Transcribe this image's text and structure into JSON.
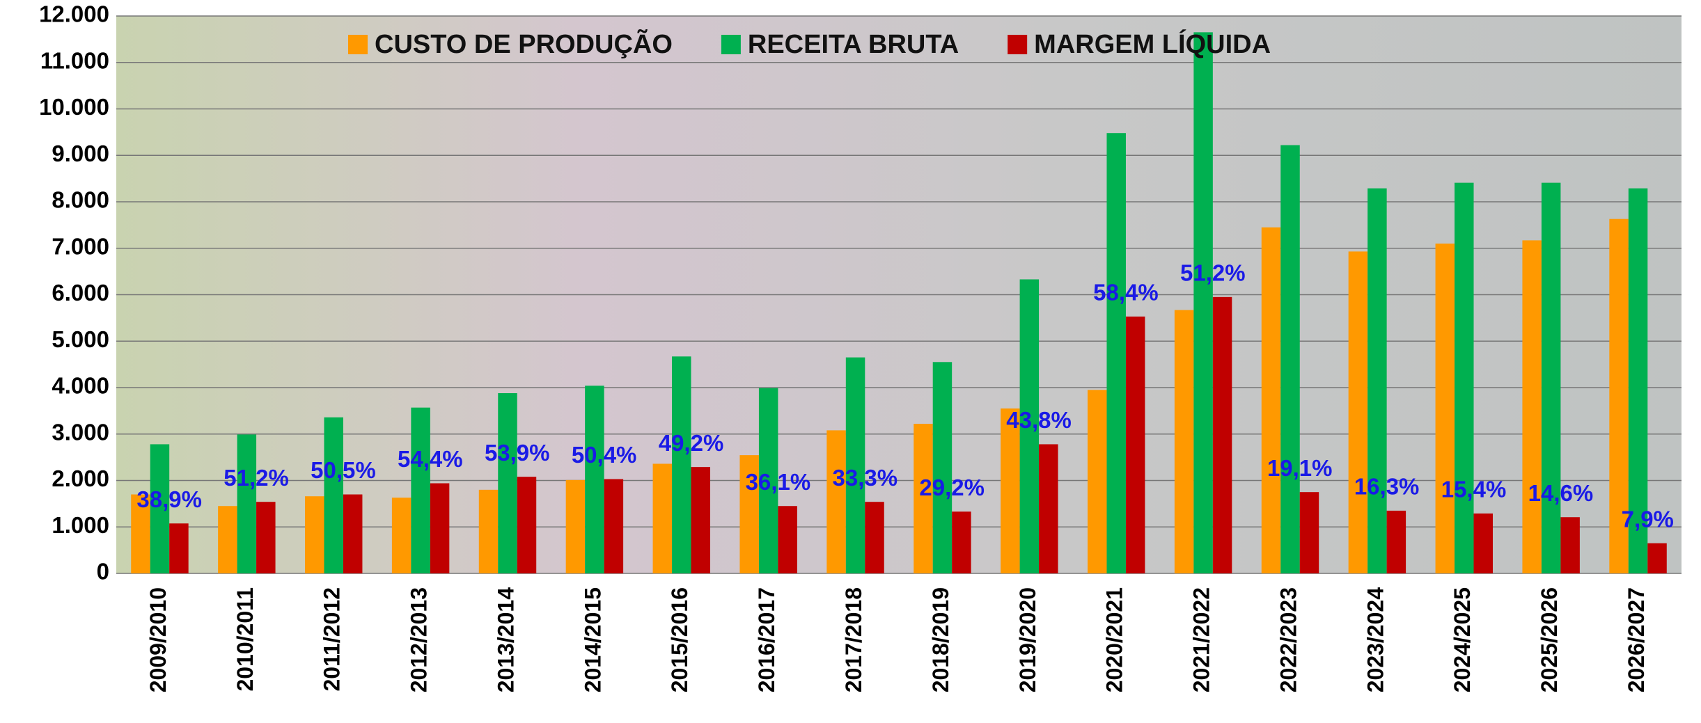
{
  "chart_data": {
    "type": "bar",
    "categories": [
      "2009/2010",
      "2010/2011",
      "2011/2012",
      "2012/2013",
      "2013/2014",
      "2014/2015",
      "2015/2016",
      "2016/2017",
      "2017/2018",
      "2018/2019",
      "2019/2020",
      "2020/2021",
      "2021/2022",
      "2022/2023",
      "2023/2024",
      "2024/2025",
      "2025/2026",
      "2026/2027"
    ],
    "series": [
      {
        "name": "CUSTO DE PRODUÇÃO",
        "color": "#ff9900",
        "values": [
          1700,
          1450,
          1660,
          1630,
          1800,
          2010,
          2360,
          2545,
          3080,
          3220,
          3550,
          3950,
          5670,
          7450,
          6930,
          7100,
          7170,
          7630
        ]
      },
      {
        "name": "RECEITA BRUTA",
        "color": "#00b050",
        "values": [
          2780,
          2990,
          3360,
          3570,
          3880,
          4040,
          4670,
          3990,
          4650,
          4550,
          6330,
          9480,
          11650,
          9220,
          8290,
          8410,
          8410,
          8290
        ]
      },
      {
        "name": "MARGEM LÍQUIDA",
        "color": "#c00000",
        "values": [
          1075,
          1540,
          1700,
          1940,
          2080,
          2030,
          2290,
          1450,
          1540,
          1330,
          2780,
          5530,
          5950,
          1750,
          1350,
          1290,
          1210,
          650
        ]
      }
    ],
    "percent_labels": [
      "38,9%",
      "51,2%",
      "50,5%",
      "54,4%",
      "53,9%",
      "50,4%",
      "49,2%",
      "36,1%",
      "33,3%",
      "29,2%",
      "43,8%",
      "58,4%",
      "51,2%",
      "19,1%",
      "16,3%",
      "15,4%",
      "14,6%",
      "7,9%"
    ],
    "ylim": [
      0,
      12000
    ],
    "yticks": [
      0,
      {
        "value": 1000,
        "label": "1.000"
      },
      {
        "value": 2000,
        "label": "2.000"
      },
      {
        "value": 3000,
        "label": "3.000"
      },
      {
        "value": 4000,
        "label": "4.000"
      },
      {
        "value": 5000,
        "label": "5.000"
      },
      {
        "value": 6000,
        "label": "6.000"
      },
      {
        "value": 7000,
        "label": "7.000"
      },
      {
        "value": 8000,
        "label": "8.000"
      },
      {
        "value": 9000,
        "label": "9.000"
      },
      {
        "value": 10000,
        "label": "10.000"
      },
      {
        "value": 11000,
        "label": "11.000"
      },
      {
        "value": 12000,
        "label": "12.000"
      }
    ],
    "grid": true,
    "legend": "top"
  }
}
